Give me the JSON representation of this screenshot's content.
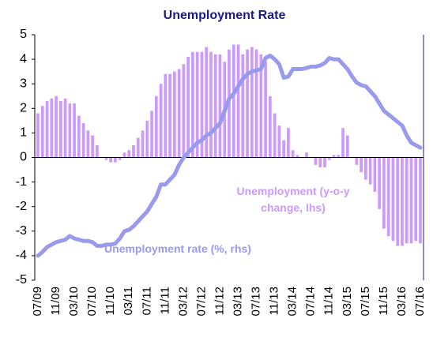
{
  "chart_data": {
    "type": "bar_line",
    "title": "Unemployment Rate",
    "categories": [
      "07/09",
      null,
      null,
      null,
      "11/09",
      null,
      null,
      null,
      "03/10",
      null,
      null,
      null,
      "07/10",
      null,
      null,
      null,
      "11/10",
      null,
      null,
      null,
      "03/11",
      null,
      null,
      null,
      "07/11",
      null,
      null,
      null,
      "11/11",
      null,
      null,
      null,
      "03/12",
      null,
      null,
      null,
      "07/12",
      null,
      null,
      null,
      "11/12",
      null,
      null,
      null,
      "03/13",
      null,
      null,
      null,
      "07/13",
      null,
      null,
      null,
      "11/13",
      null,
      null,
      null,
      "03/14",
      null,
      null,
      null,
      "07/14",
      null,
      null,
      null,
      "11/14",
      null,
      null,
      null,
      "03/15",
      null,
      null,
      null,
      "07/15",
      null,
      null,
      null,
      "11/15",
      null,
      null,
      null,
      "03/16",
      null,
      null,
      null,
      "07/16"
    ],
    "series": [
      {
        "name": "Unemployment (y-o-y change, lhs)",
        "kind": "bar",
        "color": "#cc99ff",
        "values": [
          1.8,
          2.1,
          2.3,
          2.4,
          2.5,
          2.3,
          2.4,
          2.2,
          2.2,
          1.7,
          1.4,
          1.1,
          0.9,
          0.5,
          0,
          -0.1,
          -0.2,
          -0.2,
          -0.1,
          0.2,
          0.3,
          0.5,
          0.8,
          1.1,
          1.5,
          1.9,
          2.5,
          3.0,
          3.4,
          3.4,
          3.5,
          3.6,
          3.8,
          4.1,
          4.3,
          4.3,
          4.3,
          4.5,
          4.3,
          4.2,
          4.2,
          3.9,
          4.4,
          4.6,
          4.6,
          4.2,
          4.4,
          4.5,
          4.4,
          4.2,
          3.9,
          2.5,
          1.8,
          1.3,
          0.7,
          1.2,
          0.3,
          0.1,
          0,
          0.2,
          0,
          -0.3,
          -0.4,
          -0.4,
          -0.1,
          0.1,
          0.1,
          1.2,
          0.9,
          0,
          -0.3,
          -0.6,
          -0.9,
          -1.1,
          -1.4,
          -2.1,
          -2.9,
          -3.2,
          -3.4,
          -3.6,
          -3.6,
          -3.5,
          -3.5,
          -3.4,
          -3.5
        ]
      },
      {
        "name": "Unemployment rate (%, rhs)",
        "kind": "line",
        "color": "#9999ee",
        "values": [
          -4.0,
          -3.85,
          -3.65,
          -3.55,
          -3.45,
          -3.4,
          -3.35,
          -3.2,
          -3.3,
          -3.35,
          -3.4,
          -3.4,
          -3.45,
          -3.6,
          -3.6,
          -3.55,
          -3.55,
          -3.5,
          -3.3,
          -3.0,
          -2.95,
          -2.8,
          -2.6,
          -2.4,
          -2.2,
          -1.9,
          -1.6,
          -1.1,
          -1.1,
          -0.9,
          -0.7,
          -0.3,
          0.0,
          0.2,
          0.4,
          0.6,
          0.7,
          0.9,
          1.0,
          1.2,
          1.4,
          1.9,
          2.4,
          2.6,
          2.9,
          3.2,
          3.4,
          3.5,
          3.55,
          3.6,
          4.05,
          4.15,
          4.0,
          3.8,
          3.25,
          3.3,
          3.6,
          3.6,
          3.6,
          3.65,
          3.7,
          3.7,
          3.75,
          3.85,
          4.05,
          4.0,
          4.0,
          3.8,
          3.6,
          3.3,
          3.05,
          2.95,
          2.9,
          2.7,
          2.5,
          2.2,
          1.9,
          1.75,
          1.6,
          1.45,
          1.3,
          0.9,
          0.6,
          0.5,
          0.4
        ]
      }
    ],
    "ylim": [
      -5,
      5
    ],
    "yticks": [
      -5,
      -4,
      -3,
      -2,
      -1,
      0,
      1,
      2,
      3,
      4,
      5
    ]
  }
}
